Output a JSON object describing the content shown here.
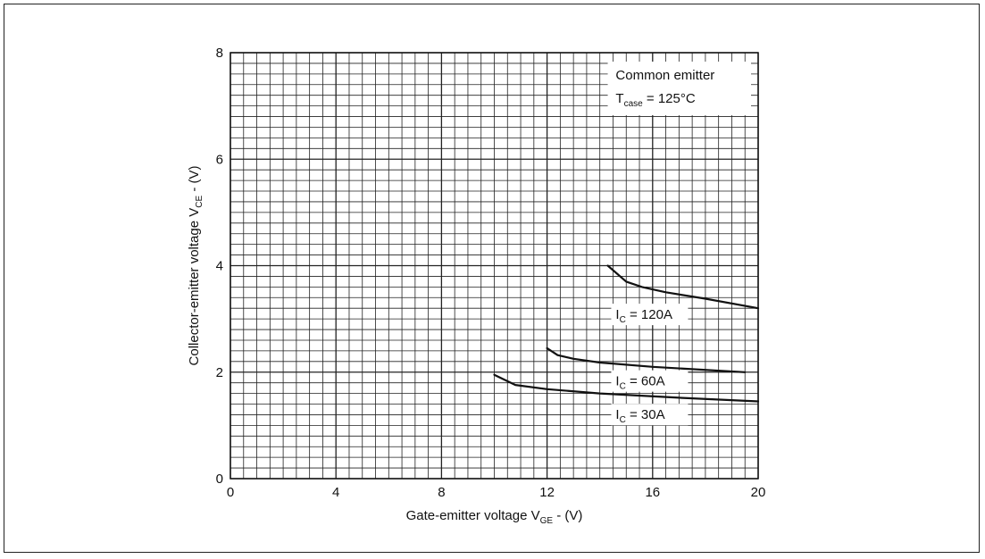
{
  "chart_data": {
    "type": "line",
    "title": "",
    "xlabel": "Gate-emitter voltage V_GE - (V)",
    "xlabel_parts": {
      "main": "Gate-emitter voltage V",
      "sub": "GE",
      "tail": " - (V)"
    },
    "ylabel": "Collector-emitter voltage V_CE - (V)",
    "ylabel_parts": {
      "main": "Collector-emitter voltage V",
      "sub": "CE",
      "tail": " - (V)"
    },
    "xlim": [
      0,
      20
    ],
    "ylim": [
      0,
      8
    ],
    "x_ticks": [
      "0",
      "4",
      "8",
      "12",
      "16",
      "20"
    ],
    "y_ticks": [
      "0",
      "2",
      "4",
      "6",
      "8"
    ],
    "grid": true,
    "grid_minor_x": 0.5,
    "grid_minor_y": 0.2,
    "annotation": {
      "line1": "Common emitter",
      "line2_main": "T",
      "line2_sub": "case",
      "line2_tail": " = 125°C"
    },
    "series": [
      {
        "name": "I_C = 120A",
        "label_main": "I",
        "label_sub": "C",
        "label_tail": " = 120A",
        "x": [
          14.3,
          15.0,
          15.6,
          16.5,
          18.0,
          20.0
        ],
        "y": [
          4.0,
          3.7,
          3.6,
          3.5,
          3.38,
          3.2
        ]
      },
      {
        "name": "I_C = 60A",
        "label_main": "I",
        "label_sub": "C",
        "label_tail": " = 60A",
        "x": [
          12.0,
          12.4,
          13.0,
          14.0,
          16.0,
          19.5
        ],
        "y": [
          2.45,
          2.32,
          2.25,
          2.18,
          2.1,
          2.0
        ]
      },
      {
        "name": "I_C = 30A",
        "label_main": "I",
        "label_sub": "C",
        "label_tail": " = 30A",
        "x": [
          10.0,
          10.8,
          12.0,
          14.0,
          17.0,
          20.0
        ],
        "y": [
          1.95,
          1.76,
          1.68,
          1.6,
          1.52,
          1.45
        ]
      }
    ],
    "colors": {
      "line": "#111111",
      "grid": "#222222",
      "axis": "#111111"
    }
  }
}
